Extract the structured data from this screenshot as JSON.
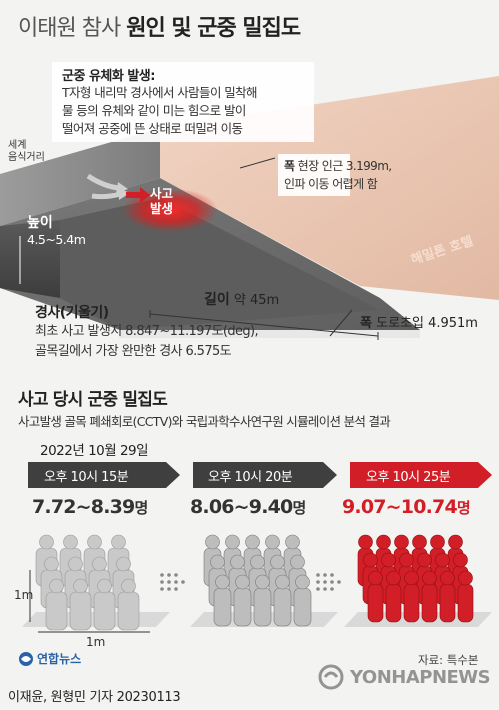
{
  "header": {
    "title_light": "이태원 참사",
    "title_bold": "원인 및 군중 밀집도"
  },
  "scene": {
    "crowd_fluid_head": "군중 유체화 발생:",
    "crowd_fluid_lines": [
      "T자형 내리막 경사에서 사람들이 밀착해",
      "물 등의 유체와 같이 미는 힘으로 발이",
      "떨어져 공중에 뜬 상태로 떠밀려 이동"
    ],
    "street_label": [
      "세계",
      "음식거리"
    ],
    "accident_label": [
      "사고",
      "발생"
    ],
    "width_head": "폭",
    "width_lines": [
      "현장 인근 3.199m,",
      "인파 이동 어렵게 함"
    ],
    "height_head": "높이",
    "height_value": "4.5~5.4m",
    "length_head": "길이",
    "length_value": "약 45m",
    "road_width_head": "폭",
    "road_width_value": "도로초입 4.951m",
    "slope_head": "경사(기울기)",
    "slope_lines": [
      "최초 사고 발생지 8.847~11.197도(deg),",
      "골목길에서 가장 완만한 경사 6.575도"
    ],
    "hotel_label": "해밀톤 호텔"
  },
  "density": {
    "title": "사고 당시 군중 밀집도",
    "subtitle": "사고발생 골목 폐쇄회로(CCTV)와 국립과학수사연구원 시뮬레이션 분석 결과",
    "date": "2022년 10월 29일",
    "stages": [
      {
        "time": "오후 10시 15분",
        "range": "7.72~8.39",
        "unit": "명",
        "people_fill": 0.2
      },
      {
        "time": "오후 10시 20분",
        "range": "8.06~9.40",
        "unit": "명",
        "people_fill": 0.6
      },
      {
        "time": "오후 10시 25분",
        "range": "9.07~10.74",
        "unit": "명",
        "people_fill": 1.0
      }
    ],
    "dim_vertical": "1m",
    "dim_horizontal": "1m"
  },
  "footer": {
    "logo_text": "연합뉴스",
    "source": "자료: 특수본",
    "credit": "이재윤, 원형민 기자  20230113",
    "watermark": "YONHAPNEWS"
  },
  "colors": {
    "accent_red": "#d21e26",
    "dark_gray": "#4a4a4a",
    "wall_pink": "#e7c4b2"
  }
}
